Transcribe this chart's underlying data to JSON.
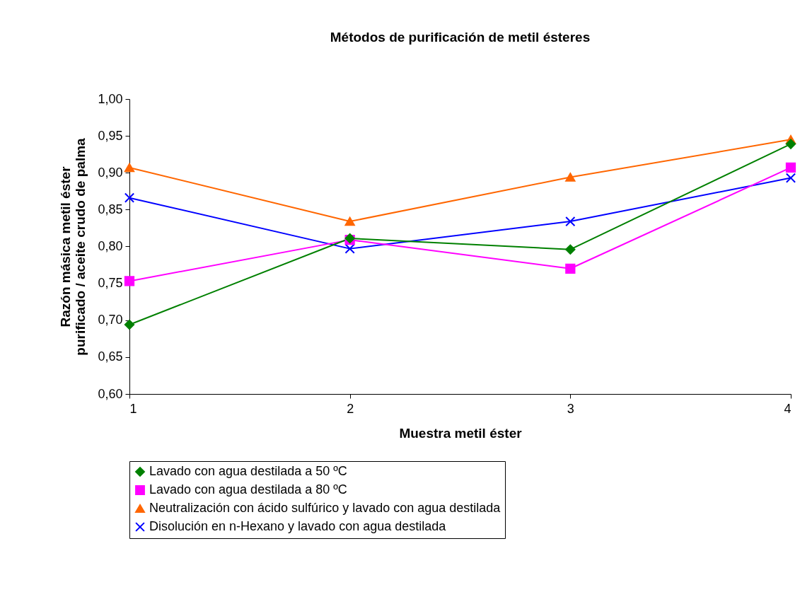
{
  "chart_data": {
    "type": "line",
    "title": "Métodos de purificación de metil ésteres",
    "xlabel": "Muestra metil éster",
    "ylabel": "Razón másica metil éster\npurificado / aceite crudo de palma",
    "x": [
      1,
      2,
      3,
      4
    ],
    "series": [
      {
        "name": "Lavado con agua destilada a 50 ºC",
        "color": "#008000",
        "marker": "diamond",
        "values": [
          0.694,
          0.811,
          0.796,
          0.939
        ]
      },
      {
        "name": "Lavado con agua destilada a 80 ºC",
        "color": "#ff00ff",
        "marker": "square",
        "values": [
          0.753,
          0.809,
          0.77,
          0.907
        ]
      },
      {
        "name": "Neutralización con ácido sulfúrico y lavado con agua destilada",
        "color": "#ff6600",
        "marker": "triangle",
        "values": [
          0.907,
          0.834,
          0.894,
          0.945
        ]
      },
      {
        "name": "Disolución en n-Hexano y lavado con agua destilada",
        "color": "#0000ff",
        "marker": "cross",
        "values": [
          0.866,
          0.797,
          0.834,
          0.893
        ]
      }
    ],
    "xlim": [
      1,
      4
    ],
    "xticks": [
      1,
      2,
      3,
      4
    ],
    "ylim": [
      0.6,
      1.0
    ],
    "yticks": [
      {
        "value": 0.6,
        "label": "0,60"
      },
      {
        "value": 0.65,
        "label": "0,65"
      },
      {
        "value": 0.7,
        "label": "0,70"
      },
      {
        "value": 0.75,
        "label": "0,75"
      },
      {
        "value": 0.8,
        "label": "0,80"
      },
      {
        "value": 0.85,
        "label": "0,85"
      },
      {
        "value": 0.9,
        "label": "0,90"
      },
      {
        "value": 0.95,
        "label": "0,95"
      },
      {
        "value": 1.0,
        "label": "1,00"
      }
    ],
    "grid": false,
    "legend": "bottom",
    "line_style": "solid"
  }
}
